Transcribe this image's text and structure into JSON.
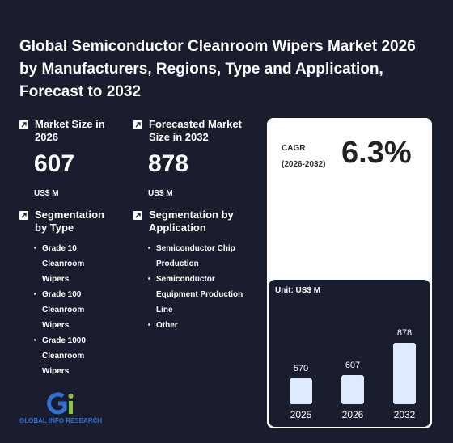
{
  "title": "Global Semiconductor Cleanroom Wipers Market 2026 by Manufacturers, Regions, Type and Application, Forecast to 2032",
  "market_size": {
    "label": "Market Size in 2026",
    "value": "607",
    "unit": "US$ M"
  },
  "forecast": {
    "label": "Forecasted Market Size in 2032",
    "value": "878",
    "unit": "US$ M"
  },
  "segmentation_type": {
    "label": "Segmentation by Type",
    "items": [
      "Grade 10 Cleanroom Wipers",
      "Grade 100 Cleanroom Wipers",
      "Grade 1000 Cleanroom Wipers"
    ]
  },
  "segmentation_application": {
    "label": "Segmentation by Application",
    "items": [
      "Semiconductor Chip Production",
      "Semiconductor Equipment Production Line",
      "Other"
    ]
  },
  "cagr": {
    "label": "CAGR",
    "period": "(2026-2032)",
    "value": "6.3%"
  },
  "logo_text": "GLOBAL INFO RESEARCH",
  "colors": {
    "background": "#1a1d2e",
    "bar": "#ddeaff",
    "logo_blue": "#2f6fd6",
    "logo_green": "#8cc63f"
  },
  "chart_data": {
    "type": "bar",
    "unit_label": "Unit: US$ M",
    "categories": [
      "2025",
      "2026",
      "2032"
    ],
    "values": [
      570,
      607,
      878
    ]
  }
}
